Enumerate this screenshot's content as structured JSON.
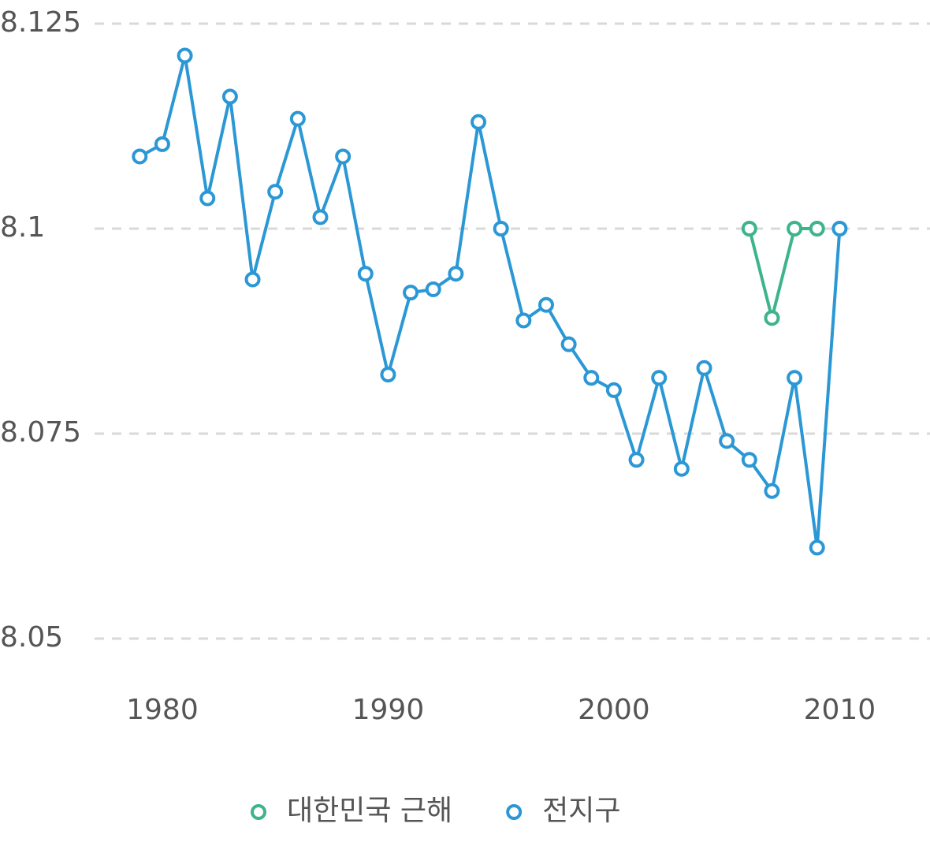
{
  "chart_data": {
    "type": "line",
    "x": [
      1979,
      1980,
      1981,
      1982,
      1983,
      1984,
      1985,
      1986,
      1987,
      1988,
      1989,
      1990,
      1991,
      1992,
      1993,
      1994,
      1995,
      1996,
      1997,
      1998,
      1999,
      2000,
      2001,
      2002,
      2003,
      2004,
      2005,
      2006,
      2007,
      2008,
      2009,
      2010
    ],
    "series": [
      {
        "name": "대한민국 근해",
        "color": "#3db48a",
        "values": [
          null,
          null,
          null,
          null,
          null,
          null,
          null,
          null,
          null,
          null,
          null,
          null,
          null,
          null,
          null,
          null,
          null,
          null,
          null,
          null,
          null,
          null,
          null,
          null,
          null,
          null,
          null,
          8.1,
          8.0891,
          8.1,
          8.1,
          null
        ]
      },
      {
        "name": "전지구",
        "color": "#2b98d5",
        "values": [
          8.1088,
          8.1103,
          8.1211,
          8.1037,
          8.1161,
          8.0938,
          8.1045,
          8.1134,
          8.1014,
          8.1088,
          8.0945,
          8.0822,
          8.0922,
          8.0926,
          8.0945,
          8.113,
          8.1,
          8.0888,
          8.0907,
          8.0859,
          8.0818,
          8.0803,
          8.0718,
          8.0818,
          8.0707,
          8.083,
          8.0741,
          8.0718,
          8.068,
          8.0818,
          8.0611,
          8.1
        ]
      }
    ],
    "xlim": [
      1977,
      2014
    ],
    "xticks": [
      1980,
      1990,
      2000,
      2010
    ],
    "ylim": [
      8.05,
      8.125
    ],
    "yticks": [
      8.05,
      8.075,
      8.1,
      8.125
    ],
    "grid": true,
    "legend": "bottom"
  }
}
